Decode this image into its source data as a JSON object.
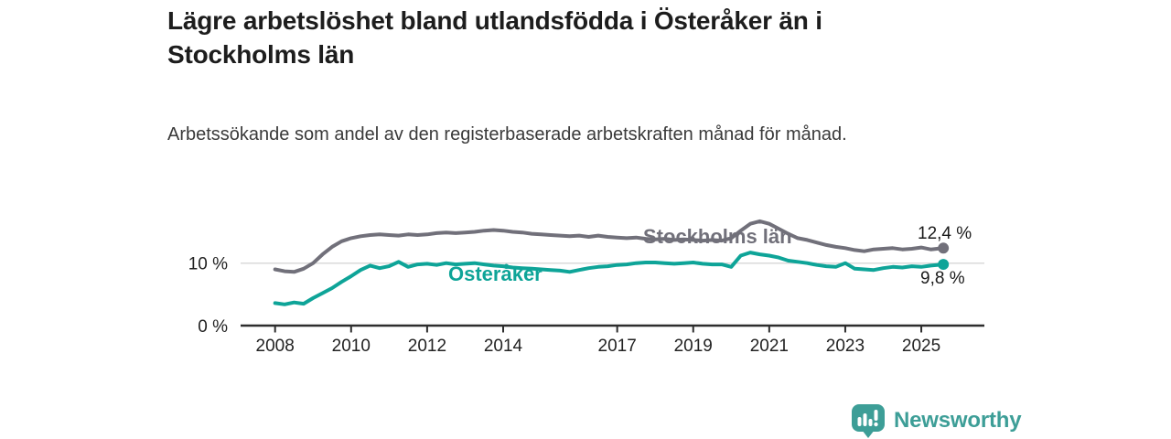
{
  "title": "Lägre arbetslöshet bland utlandsfödda i Österåker än i Stockholms län",
  "subtitle": "Arbetssökande som andel av den registerbaserade arbetskraften månad för månad.",
  "footer": {
    "brand": "Newsworthy",
    "logo_icon": "bar-chart-speech-bubble-icon"
  },
  "colors": {
    "stockholm": "#71707a",
    "osteraker": "#0ea498",
    "axis": "#2d2d2d",
    "grid": "#dadada",
    "tick_text": "#222222",
    "end_label_text": "#1a1a1a",
    "brand": "#3d9e97"
  },
  "chart_data": {
    "type": "line",
    "x_unit": "year (monthly series)",
    "y_unit": "percent of register-based labour force",
    "xlim": [
      2007.1,
      2026.65
    ],
    "ylim": [
      0,
      18.5
    ],
    "grid": "horizontal at 10 % only",
    "legend_position": "inline labels on lines",
    "xticks": [
      2008,
      2010,
      2012,
      2014,
      2017,
      2019,
      2021,
      2023,
      2025
    ],
    "yticks": [
      {
        "value": 0,
        "label": "0 %"
      },
      {
        "value": 10,
        "label": "10 %"
      }
    ],
    "x": [
      2008,
      2008.25,
      2008.5,
      2008.75,
      2009,
      2009.25,
      2009.5,
      2009.75,
      2010,
      2010.25,
      2010.5,
      2010.75,
      2011,
      2011.25,
      2011.5,
      2011.75,
      2012,
      2012.25,
      2012.5,
      2012.75,
      2013,
      2013.25,
      2013.5,
      2013.75,
      2014,
      2014.25,
      2014.5,
      2014.75,
      2015,
      2015.25,
      2015.5,
      2015.75,
      2016,
      2016.25,
      2016.5,
      2016.75,
      2017,
      2017.25,
      2017.5,
      2017.75,
      2018,
      2018.25,
      2018.5,
      2018.75,
      2019,
      2019.25,
      2019.5,
      2019.75,
      2020,
      2020.25,
      2020.5,
      2020.75,
      2021,
      2021.25,
      2021.5,
      2021.75,
      2022,
      2022.25,
      2022.5,
      2022.75,
      2023,
      2023.25,
      2023.5,
      2023.75,
      2024,
      2024.25,
      2024.5,
      2024.75,
      2025,
      2025.25,
      2025.58
    ],
    "series": [
      {
        "name": "Stockholms län",
        "color_key": "stockholm",
        "end_value": 12.4,
        "end_label": "12,4 %",
        "values": [
          9.0,
          8.7,
          8.6,
          9.1,
          10.0,
          11.4,
          12.6,
          13.5,
          14.0,
          14.3,
          14.5,
          14.6,
          14.5,
          14.4,
          14.6,
          14.5,
          14.6,
          14.8,
          14.9,
          14.8,
          14.9,
          15.0,
          15.2,
          15.3,
          15.2,
          15.0,
          14.9,
          14.7,
          14.6,
          14.5,
          14.4,
          14.3,
          14.4,
          14.2,
          14.4,
          14.2,
          14.1,
          14.0,
          14.1,
          13.9,
          13.8,
          13.9,
          13.7,
          13.8,
          13.7,
          13.6,
          13.7,
          13.6,
          14.0,
          15.2,
          16.3,
          16.7,
          16.3,
          15.5,
          14.7,
          14.0,
          13.7,
          13.3,
          12.9,
          12.6,
          12.4,
          12.1,
          11.9,
          12.2,
          12.3,
          12.4,
          12.2,
          12.3,
          12.5,
          12.2,
          12.4
        ]
      },
      {
        "name": "Österåker",
        "color_key": "osteraker",
        "end_value": 9.8,
        "end_label": "9,8 %",
        "values": [
          3.6,
          3.4,
          3.7,
          3.5,
          4.4,
          5.2,
          6.0,
          7.0,
          7.9,
          8.9,
          9.6,
          9.2,
          9.5,
          10.2,
          9.4,
          9.8,
          9.9,
          9.7,
          10.0,
          9.8,
          9.9,
          10.0,
          9.8,
          9.6,
          9.5,
          9.3,
          9.2,
          9.1,
          9.0,
          8.9,
          8.8,
          8.6,
          8.9,
          9.2,
          9.4,
          9.5,
          9.7,
          9.8,
          10.0,
          10.1,
          10.1,
          10.0,
          9.9,
          10.0,
          10.1,
          9.9,
          9.8,
          9.8,
          9.4,
          11.2,
          11.7,
          11.4,
          11.2,
          10.9,
          10.4,
          10.2,
          10.0,
          9.7,
          9.5,
          9.4,
          10.0,
          9.1,
          9.0,
          8.9,
          9.2,
          9.4,
          9.3,
          9.5,
          9.4,
          9.6,
          9.8
        ]
      }
    ]
  }
}
